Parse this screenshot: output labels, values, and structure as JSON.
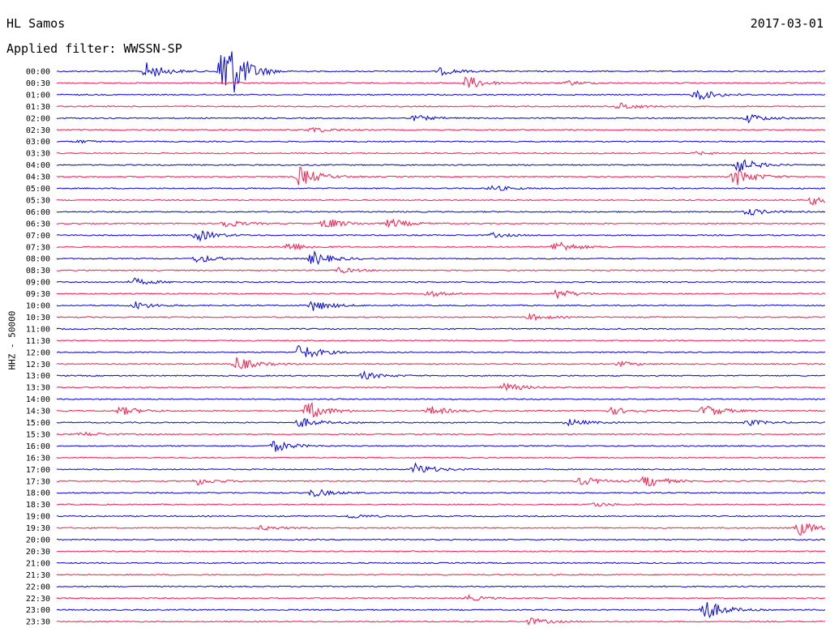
{
  "header": {
    "station": "HL Samos",
    "date": "2017-03-01",
    "filter": "Applied filter: WWSSN-SP"
  },
  "colors": {
    "blue": "#0000ee",
    "red": "#ff1a4a",
    "text": "#000000"
  },
  "chart_data": {
    "type": "line",
    "title": "HL Samos",
    "subtitle": "Applied filter: WWSSN-SP",
    "ylabel": "HHZ - 50000",
    "xlabel": "",
    "rows": [
      "00:00",
      "00:30",
      "01:00",
      "01:30",
      "02:00",
      "02:30",
      "03:00",
      "03:30",
      "04:00",
      "04:30",
      "05:00",
      "05:30",
      "06:00",
      "06:30",
      "07:00",
      "07:30",
      "08:00",
      "08:30",
      "09:00",
      "09:30",
      "10:00",
      "10:30",
      "11:00",
      "11:30",
      "12:00",
      "12:30",
      "13:00",
      "13:30",
      "14:00",
      "14:30",
      "15:00",
      "15:30",
      "16:00",
      "16:30",
      "17:00",
      "17:30",
      "18:00",
      "18:30",
      "19:00",
      "19:30",
      "20:00",
      "20:30",
      "21:00",
      "21:30",
      "22:00",
      "22:30",
      "23:00",
      "23:30"
    ],
    "row_colors": [
      "blue",
      "red"
    ],
    "minutes_per_row": 30,
    "grid": false,
    "events": [
      {
        "row": 0,
        "minute": 3.5,
        "amp": 1.2
      },
      {
        "row": 0,
        "minute": 6.5,
        "amp": 6.0
      },
      {
        "row": 0,
        "minute": 15.0,
        "amp": 0.5
      },
      {
        "row": 1,
        "minute": 16.0,
        "amp": 1.0
      },
      {
        "row": 1,
        "minute": 20.0,
        "amp": 0.3
      },
      {
        "row": 2,
        "minute": 25.0,
        "amp": 0.8
      },
      {
        "row": 3,
        "minute": 22.0,
        "amp": 0.5
      },
      {
        "row": 4,
        "minute": 14.0,
        "amp": 0.4
      },
      {
        "row": 4,
        "minute": 27.0,
        "amp": 0.6
      },
      {
        "row": 5,
        "minute": 10.0,
        "amp": 0.4
      },
      {
        "row": 6,
        "minute": 0.8,
        "amp": 0.2
      },
      {
        "row": 7,
        "minute": 25.0,
        "amp": 0.2
      },
      {
        "row": 8,
        "minute": 26.5,
        "amp": 1.2
      },
      {
        "row": 9,
        "minute": 9.5,
        "amp": 1.4
      },
      {
        "row": 9,
        "minute": 26.5,
        "amp": 1.3
      },
      {
        "row": 10,
        "minute": 17.0,
        "amp": 0.4
      },
      {
        "row": 11,
        "minute": 29.5,
        "amp": 0.6
      },
      {
        "row": 12,
        "minute": 27.0,
        "amp": 0.5
      },
      {
        "row": 13,
        "minute": 6.5,
        "amp": 0.6
      },
      {
        "row": 13,
        "minute": 10.5,
        "amp": 0.8
      },
      {
        "row": 13,
        "minute": 13.0,
        "amp": 0.7
      },
      {
        "row": 14,
        "minute": 5.5,
        "amp": 0.8
      },
      {
        "row": 14,
        "minute": 17.0,
        "amp": 0.3
      },
      {
        "row": 15,
        "minute": 9.0,
        "amp": 0.6
      },
      {
        "row": 15,
        "minute": 19.5,
        "amp": 0.9
      },
      {
        "row": 16,
        "minute": 5.5,
        "amp": 0.6
      },
      {
        "row": 16,
        "minute": 10.0,
        "amp": 1.0
      },
      {
        "row": 17,
        "minute": 11.0,
        "amp": 0.4
      },
      {
        "row": 18,
        "minute": 3.0,
        "amp": 0.5
      },
      {
        "row": 19,
        "minute": 14.5,
        "amp": 0.4
      },
      {
        "row": 19,
        "minute": 19.5,
        "amp": 0.7
      },
      {
        "row": 20,
        "minute": 3.0,
        "amp": 0.6
      },
      {
        "row": 20,
        "minute": 10.0,
        "amp": 0.8
      },
      {
        "row": 21,
        "minute": 18.5,
        "amp": 0.4
      },
      {
        "row": 24,
        "minute": 9.5,
        "amp": 1.2
      },
      {
        "row": 25,
        "minute": 7.0,
        "amp": 1.0
      },
      {
        "row": 25,
        "minute": 22.0,
        "amp": 0.3
      },
      {
        "row": 26,
        "minute": 12.0,
        "amp": 0.5
      },
      {
        "row": 27,
        "minute": 17.5,
        "amp": 0.6
      },
      {
        "row": 29,
        "minute": 2.5,
        "amp": 0.6
      },
      {
        "row": 29,
        "minute": 9.8,
        "amp": 1.3
      },
      {
        "row": 29,
        "minute": 14.6,
        "amp": 0.6
      },
      {
        "row": 29,
        "minute": 21.7,
        "amp": 0.5
      },
      {
        "row": 29,
        "minute": 25.3,
        "amp": 0.9
      },
      {
        "row": 30,
        "minute": 9.5,
        "amp": 0.7
      },
      {
        "row": 30,
        "minute": 20.0,
        "amp": 0.5
      },
      {
        "row": 30,
        "minute": 27.0,
        "amp": 0.4
      },
      {
        "row": 31,
        "minute": 1.0,
        "amp": 0.3
      },
      {
        "row": 32,
        "minute": 8.5,
        "amp": 0.8
      },
      {
        "row": 34,
        "minute": 14.0,
        "amp": 0.8
      },
      {
        "row": 35,
        "minute": 5.5,
        "amp": 0.5
      },
      {
        "row": 35,
        "minute": 20.5,
        "amp": 0.6
      },
      {
        "row": 35,
        "minute": 23.0,
        "amp": 0.9
      },
      {
        "row": 36,
        "minute": 10.0,
        "amp": 0.6
      },
      {
        "row": 37,
        "minute": 21.0,
        "amp": 0.3
      },
      {
        "row": 38,
        "minute": 11.5,
        "amp": 0.3
      },
      {
        "row": 39,
        "minute": 8.0,
        "amp": 0.3
      },
      {
        "row": 39,
        "minute": 29.0,
        "amp": 1.0
      },
      {
        "row": 45,
        "minute": 16.0,
        "amp": 0.4
      },
      {
        "row": 46,
        "minute": 25.3,
        "amp": 1.5
      },
      {
        "row": 47,
        "minute": 18.5,
        "amp": 0.5
      }
    ]
  }
}
